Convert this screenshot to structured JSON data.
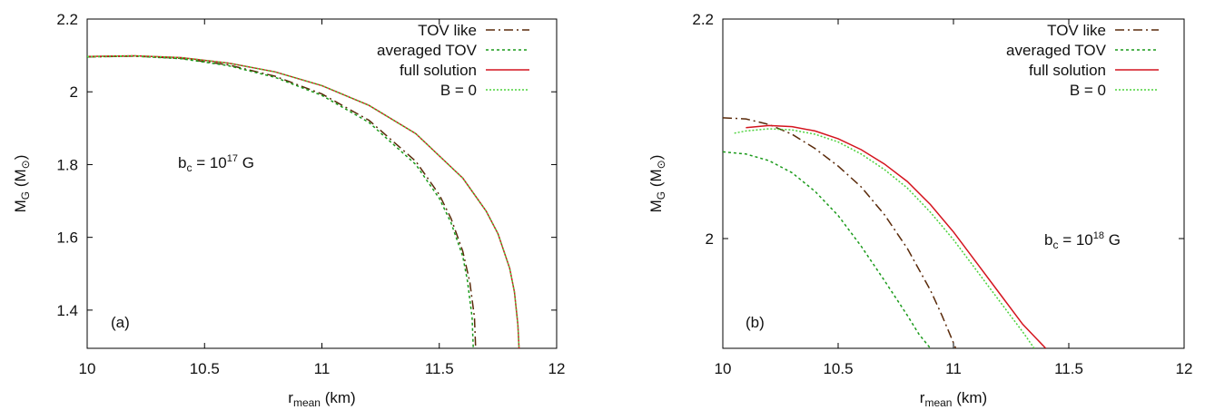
{
  "chart_data": [
    {
      "type": "line",
      "panel_label": "(a)",
      "annotation": {
        "prefix": "b",
        "sub": "c",
        "middle": " = 10",
        "sup": "17",
        "suffix": " G"
      },
      "xlabel": {
        "main": "r",
        "sub": "mean",
        "rest": " (km)"
      },
      "ylabel": {
        "main": "M",
        "sub": "G",
        "rest": " (M",
        "sub2": "⊙",
        "close": ")"
      },
      "xlim": [
        10,
        12
      ],
      "ylim": [
        1.295,
        2.2
      ],
      "xticks": [
        10,
        10.5,
        11,
        11.5,
        12
      ],
      "xtick_labels": [
        "10",
        "10.5",
        "11",
        "11.5",
        "12"
      ],
      "yticks": [
        1.4,
        1.6,
        1.8,
        2.0,
        2.2
      ],
      "ytick_labels": [
        "1.4",
        "1.6",
        "1.8",
        "2",
        "2.2"
      ],
      "legend_position": "top-right",
      "series": [
        {
          "name": "TOV like",
          "color": "#5a2a0a",
          "dash": "10,4,2,4",
          "points": [
            [
              10.0,
              2.096
            ],
            [
              10.2,
              2.098
            ],
            [
              10.4,
              2.092
            ],
            [
              10.6,
              2.074
            ],
            [
              10.8,
              2.043
            ],
            [
              11.0,
              1.994
            ],
            [
              11.2,
              1.922
            ],
            [
              11.4,
              1.809
            ],
            [
              11.5,
              1.717
            ],
            [
              11.55,
              1.652
            ],
            [
              11.6,
              1.562
            ],
            [
              11.63,
              1.477
            ],
            [
              11.65,
              1.38
            ],
            [
              11.655,
              1.295
            ]
          ]
        },
        {
          "name": "averaged TOV",
          "color": "#1a9a1a",
          "dash": "3,3",
          "points": [
            [
              10.0,
              2.096
            ],
            [
              10.2,
              2.098
            ],
            [
              10.4,
              2.091
            ],
            [
              10.6,
              2.072
            ],
            [
              10.8,
              2.04
            ],
            [
              11.0,
              1.99
            ],
            [
              11.2,
              1.916
            ],
            [
              11.4,
              1.8
            ],
            [
              11.5,
              1.707
            ],
            [
              11.55,
              1.64
            ],
            [
              11.6,
              1.548
            ],
            [
              11.62,
              1.48
            ],
            [
              11.64,
              1.38
            ],
            [
              11.645,
              1.295
            ]
          ]
        },
        {
          "name": "full solution",
          "color": "#d4141e",
          "dash": "",
          "points": [
            [
              10.0,
              2.097
            ],
            [
              10.2,
              2.099
            ],
            [
              10.4,
              2.094
            ],
            [
              10.6,
              2.079
            ],
            [
              10.8,
              2.055
            ],
            [
              11.0,
              2.017
            ],
            [
              11.2,
              1.963
            ],
            [
              11.4,
              1.885
            ],
            [
              11.6,
              1.763
            ],
            [
              11.7,
              1.672
            ],
            [
              11.75,
              1.61
            ],
            [
              11.8,
              1.515
            ],
            [
              11.82,
              1.45
            ],
            [
              11.835,
              1.36
            ],
            [
              11.84,
              1.295
            ]
          ]
        },
        {
          "name": "B = 0",
          "color": "#4cd23c",
          "dash": "2,2",
          "points": [
            [
              10.0,
              2.097
            ],
            [
              10.2,
              2.099
            ],
            [
              10.4,
              2.094
            ],
            [
              10.6,
              2.079
            ],
            [
              10.8,
              2.055
            ],
            [
              11.0,
              2.017
            ],
            [
              11.2,
              1.963
            ],
            [
              11.4,
              1.885
            ],
            [
              11.6,
              1.763
            ],
            [
              11.7,
              1.672
            ],
            [
              11.75,
              1.61
            ],
            [
              11.8,
              1.515
            ],
            [
              11.82,
              1.45
            ],
            [
              11.835,
              1.36
            ],
            [
              11.84,
              1.295
            ]
          ]
        }
      ]
    },
    {
      "type": "line",
      "panel_label": "(b)",
      "annotation": {
        "prefix": "b",
        "sub": "c",
        "middle": " = 10",
        "sup": "18",
        "suffix": " G"
      },
      "xlabel": {
        "main": "r",
        "sub": "mean",
        "rest": " (km)"
      },
      "ylabel": {
        "main": "M",
        "sub": "G",
        "rest": " (M",
        "sub2": "⊙",
        "close": ")"
      },
      "xlim": [
        10,
        12
      ],
      "ylim": [
        1.9,
        2.2
      ],
      "xticks": [
        10,
        10.5,
        11,
        11.5,
        12
      ],
      "xtick_labels": [
        "10",
        "10.5",
        "11",
        "11.5",
        "12"
      ],
      "yticks": [
        2.0,
        2.2
      ],
      "ytick_labels": [
        "2",
        "2.2"
      ],
      "legend_position": "top-right",
      "series": [
        {
          "name": "TOV like",
          "color": "#5a2a0a",
          "dash": "10,4,2,4",
          "points": [
            [
              10.0,
              2.11
            ],
            [
              10.1,
              2.109
            ],
            [
              10.2,
              2.104
            ],
            [
              10.3,
              2.095
            ],
            [
              10.4,
              2.082
            ],
            [
              10.5,
              2.066
            ],
            [
              10.6,
              2.047
            ],
            [
              10.7,
              2.022
            ],
            [
              10.8,
              1.991
            ],
            [
              10.9,
              1.953
            ],
            [
              10.95,
              1.93
            ],
            [
              11.0,
              1.905
            ],
            [
              11.01,
              1.9
            ]
          ]
        },
        {
          "name": "averaged TOV",
          "color": "#1a9a1a",
          "dash": "3,3",
          "points": [
            [
              10.0,
              2.079
            ],
            [
              10.1,
              2.077
            ],
            [
              10.2,
              2.071
            ],
            [
              10.3,
              2.06
            ],
            [
              10.4,
              2.043
            ],
            [
              10.5,
              2.021
            ],
            [
              10.6,
              1.993
            ],
            [
              10.7,
              1.962
            ],
            [
              10.8,
              1.93
            ],
            [
              10.85,
              1.913
            ],
            [
              10.9,
              1.9
            ]
          ]
        },
        {
          "name": "full solution",
          "color": "#d4141e",
          "dash": "",
          "points": [
            [
              10.1,
              2.101
            ],
            [
              10.2,
              2.103
            ],
            [
              10.3,
              2.102
            ],
            [
              10.4,
              2.098
            ],
            [
              10.5,
              2.091
            ],
            [
              10.6,
              2.081
            ],
            [
              10.7,
              2.068
            ],
            [
              10.8,
              2.052
            ],
            [
              10.9,
              2.031
            ],
            [
              11.0,
              2.006
            ],
            [
              11.1,
              1.978
            ],
            [
              11.2,
              1.95
            ],
            [
              11.3,
              1.922
            ],
            [
              11.4,
              1.9
            ]
          ]
        },
        {
          "name": "B = 0",
          "color": "#4cd23c",
          "dash": "2,2",
          "points": [
            [
              10.05,
              2.096
            ],
            [
              10.1,
              2.098
            ],
            [
              10.2,
              2.1
            ],
            [
              10.3,
              2.099
            ],
            [
              10.4,
              2.095
            ],
            [
              10.5,
              2.088
            ],
            [
              10.6,
              2.077
            ],
            [
              10.7,
              2.063
            ],
            [
              10.8,
              2.046
            ],
            [
              10.9,
              2.024
            ],
            [
              11.0,
              1.999
            ],
            [
              11.1,
              1.971
            ],
            [
              11.2,
              1.943
            ],
            [
              11.3,
              1.915
            ],
            [
              11.35,
              1.9
            ]
          ]
        }
      ]
    }
  ]
}
